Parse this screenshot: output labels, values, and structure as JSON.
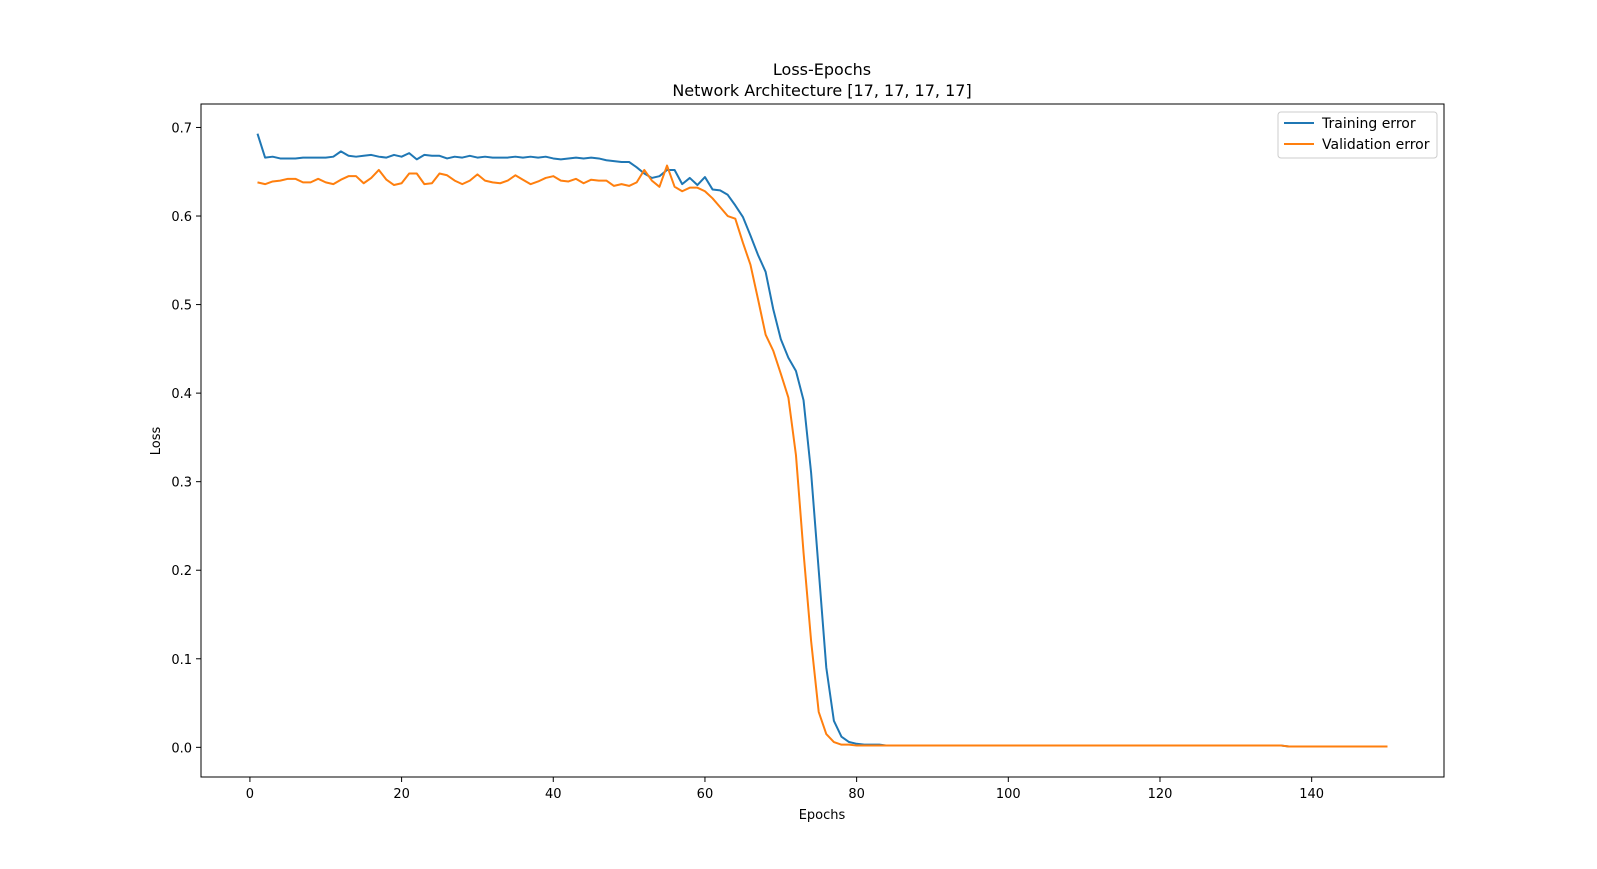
{
  "chart_data": {
    "type": "line",
    "title": "Loss-Epochs",
    "subtitle": "Network Architecture [17, 17, 17, 17]",
    "xlabel": "Epochs",
    "ylabel": "Loss",
    "xlim": [
      -6.45,
      157.45
    ],
    "ylim": [
      -0.0335,
      0.7265
    ],
    "xticks": [
      0,
      20,
      40,
      60,
      80,
      100,
      120,
      140
    ],
    "yticks": [
      0.0,
      0.1,
      0.2,
      0.3,
      0.4,
      0.5,
      0.6,
      0.7
    ],
    "xtick_labels": [
      "0",
      "20",
      "40",
      "60",
      "80",
      "100",
      "120",
      "140"
    ],
    "ytick_labels": [
      "0.0",
      "0.1",
      "0.2",
      "0.3",
      "0.4",
      "0.5",
      "0.6",
      "0.7"
    ],
    "grid": false,
    "legend_position": "top-right",
    "series": [
      {
        "name": "Training error",
        "color": "#1f77b4",
        "values": [
          0.693,
          0.666,
          0.667,
          0.665,
          0.665,
          0.665,
          0.666,
          0.666,
          0.666,
          0.666,
          0.667,
          0.673,
          0.668,
          0.667,
          0.668,
          0.669,
          0.667,
          0.666,
          0.669,
          0.667,
          0.671,
          0.664,
          0.669,
          0.668,
          0.668,
          0.665,
          0.667,
          0.666,
          0.668,
          0.666,
          0.667,
          0.666,
          0.666,
          0.666,
          0.667,
          0.666,
          0.667,
          0.666,
          0.667,
          0.665,
          0.664,
          0.665,
          0.666,
          0.665,
          0.666,
          0.665,
          0.663,
          0.662,
          0.661,
          0.661,
          0.655,
          0.648,
          0.643,
          0.645,
          0.652,
          0.652,
          0.636,
          0.643,
          0.635,
          0.644,
          0.63,
          0.629,
          0.624,
          0.612,
          0.599,
          0.578,
          0.556,
          0.537,
          0.495,
          0.461,
          0.44,
          0.425,
          0.392,
          0.31,
          0.2,
          0.09,
          0.03,
          0.012,
          0.006,
          0.004,
          0.003,
          0.003,
          0.003,
          0.002,
          0.002,
          0.002,
          0.002,
          0.002,
          0.002,
          0.002,
          0.002,
          0.002,
          0.002,
          0.002,
          0.002,
          0.002,
          0.002,
          0.002,
          0.002,
          0.002,
          0.002,
          0.002,
          0.002,
          0.002,
          0.002,
          0.002,
          0.002,
          0.002,
          0.002,
          0.002,
          0.002,
          0.002,
          0.002,
          0.002,
          0.002,
          0.002,
          0.002,
          0.002,
          0.002,
          0.002,
          0.002,
          0.002,
          0.002,
          0.002,
          0.002,
          0.002,
          0.002,
          0.002,
          0.002,
          0.002,
          0.002,
          0.002,
          0.002,
          0.002,
          0.002,
          0.002,
          0.001,
          0.001,
          0.001,
          0.001,
          0.001,
          0.001,
          0.001,
          0.001,
          0.001,
          0.001,
          0.001,
          0.001,
          0.001,
          0.001
        ]
      },
      {
        "name": "Validation error",
        "color": "#ff7f0e",
        "values": [
          0.638,
          0.636,
          0.639,
          0.64,
          0.642,
          0.642,
          0.638,
          0.638,
          0.642,
          0.638,
          0.636,
          0.641,
          0.645,
          0.645,
          0.637,
          0.643,
          0.652,
          0.641,
          0.635,
          0.637,
          0.648,
          0.648,
          0.636,
          0.637,
          0.648,
          0.646,
          0.64,
          0.636,
          0.64,
          0.647,
          0.64,
          0.638,
          0.637,
          0.64,
          0.646,
          0.641,
          0.636,
          0.639,
          0.643,
          0.645,
          0.64,
          0.639,
          0.642,
          0.637,
          0.641,
          0.64,
          0.64,
          0.634,
          0.636,
          0.634,
          0.638,
          0.652,
          0.64,
          0.633,
          0.657,
          0.633,
          0.628,
          0.632,
          0.632,
          0.628,
          0.62,
          0.61,
          0.6,
          0.597,
          0.57,
          0.545,
          0.506,
          0.466,
          0.448,
          0.422,
          0.395,
          0.33,
          0.22,
          0.12,
          0.04,
          0.015,
          0.006,
          0.003,
          0.003,
          0.002,
          0.002,
          0.002,
          0.002,
          0.002,
          0.002,
          0.002,
          0.002,
          0.002,
          0.002,
          0.002,
          0.002,
          0.002,
          0.002,
          0.002,
          0.002,
          0.002,
          0.002,
          0.002,
          0.002,
          0.002,
          0.002,
          0.002,
          0.002,
          0.002,
          0.002,
          0.002,
          0.002,
          0.002,
          0.002,
          0.002,
          0.002,
          0.002,
          0.002,
          0.002,
          0.002,
          0.002,
          0.002,
          0.002,
          0.002,
          0.002,
          0.002,
          0.002,
          0.002,
          0.002,
          0.002,
          0.002,
          0.002,
          0.002,
          0.002,
          0.002,
          0.002,
          0.002,
          0.002,
          0.002,
          0.002,
          0.002,
          0.001,
          0.001,
          0.001,
          0.001,
          0.001,
          0.001,
          0.001,
          0.001,
          0.001,
          0.001,
          0.001,
          0.001,
          0.001,
          0.001
        ]
      }
    ]
  }
}
